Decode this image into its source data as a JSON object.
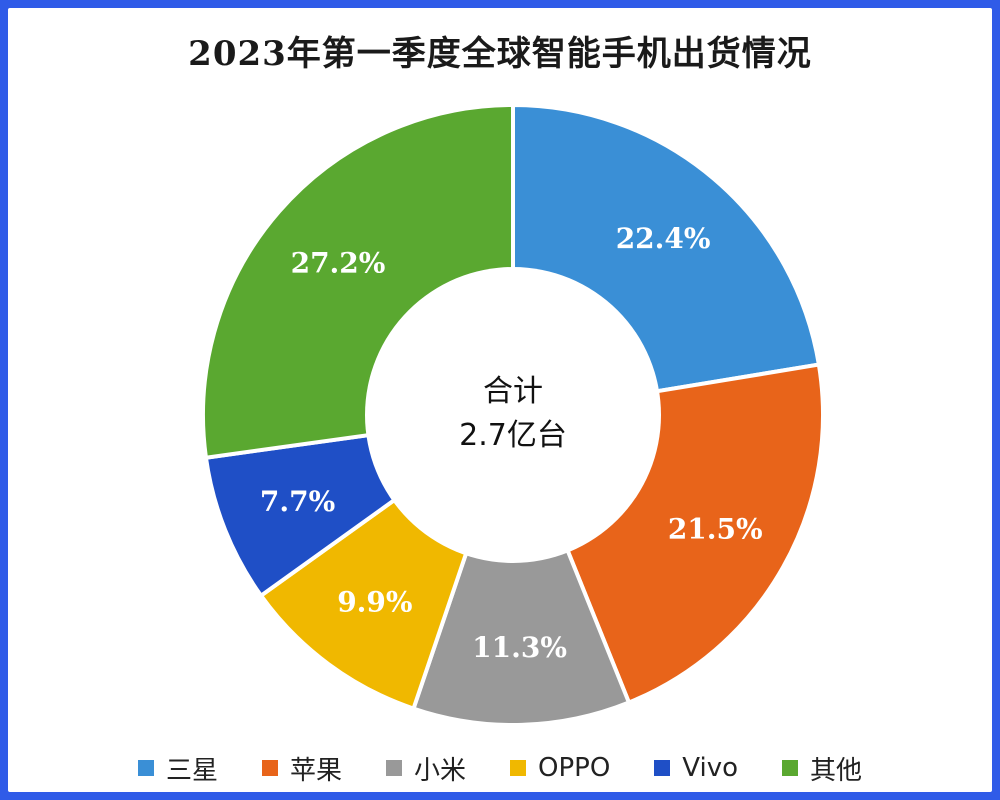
{
  "chart_data": {
    "type": "pie",
    "title": "2023年第一季度全球智能手机出货情况",
    "center_label": [
      "合计",
      "2.7亿台"
    ],
    "categories": [
      "三星",
      "苹果",
      "小米",
      "OPPO",
      "Vivo",
      "其他"
    ],
    "values": [
      22.4,
      21.5,
      11.3,
      9.9,
      7.7,
      27.2
    ],
    "labels": [
      "22.4%",
      "21.5%",
      "11.3%",
      "9.9%",
      "7.7%",
      "27.2%"
    ],
    "colors": [
      "#3a8fd6",
      "#e8641a",
      "#999999",
      "#f0b800",
      "#1f4fc6",
      "#5aa830"
    ],
    "legend": "bottom",
    "chart_style": "donut"
  }
}
